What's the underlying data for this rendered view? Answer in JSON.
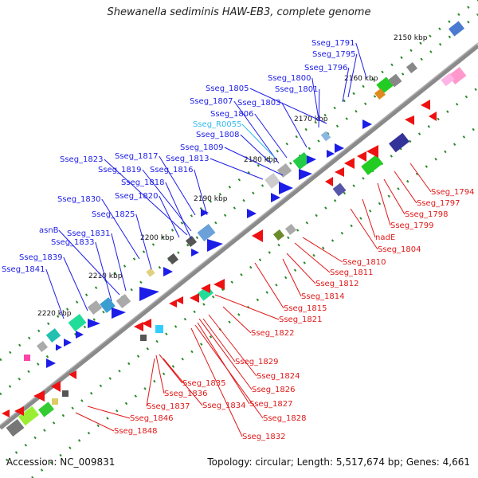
{
  "title": "Shewanella sediminis HAW-EB3, complete genome",
  "colors": {
    "top_strand_label": "#1d1de8",
    "bottom_strand_label": "#e01818",
    "rna_label": "#33bbee",
    "backbone": "#8a8a8a",
    "track_dots": "#2a8a2a"
  },
  "scale_labels": [
    "2150 kbp",
    "2160 kbp",
    "2170 kbp",
    "2180 kbp",
    "2190 kbp",
    "2200 kbp",
    "2210 kbp",
    "2220 kbp"
  ],
  "top_strand_genes": [
    "Sseg_1791",
    "Sseg_1795",
    "Sseg_1796",
    "Sseg_1800",
    "Sseg_1805",
    "Sseg_1801",
    "Sseg_1807",
    "Sseg_1803",
    "Sseg_1806",
    "Sseg_R0055",
    "Sseg_1808",
    "Sseg_1809",
    "Sseg_1813",
    "Sseg_1817",
    "Sseg_1823",
    "Sseg_1819",
    "Sseg_1816",
    "Sseg_1818",
    "Sseg_1820",
    "Sseg_1830",
    "Sseg_1825",
    "asnB",
    "Sseg_1831",
    "Sseg_1833",
    "Sseg_1839",
    "Sseg_1841"
  ],
  "bottom_strand_genes": [
    "Sseg_1794",
    "Sseg_1797",
    "Sseg_1798",
    "Sseg_1799",
    "nadE",
    "Sseg_1804",
    "Sseg_1810",
    "Sseg_1811",
    "Sseg_1812",
    "Sseg_1814",
    "Sseg_1815",
    "Sseg_1821",
    "Sseg_1822",
    "Sseg_1829",
    "Sseg_1824",
    "Sseg_1835",
    "Sseg_1826",
    "Sseg_1836",
    "Sseg_1834",
    "Sseg_1827",
    "Sseg_1837",
    "Sseg_1828",
    "Sseg_1846",
    "Sseg_1848",
    "Sseg_1832"
  ],
  "rna_genes": [
    "Sseg_R0055"
  ],
  "footer": {
    "accession": "Accession: NC_009831",
    "summary": "Topology: circular; Length: 5,517,674 bp; Genes: 4,661"
  }
}
